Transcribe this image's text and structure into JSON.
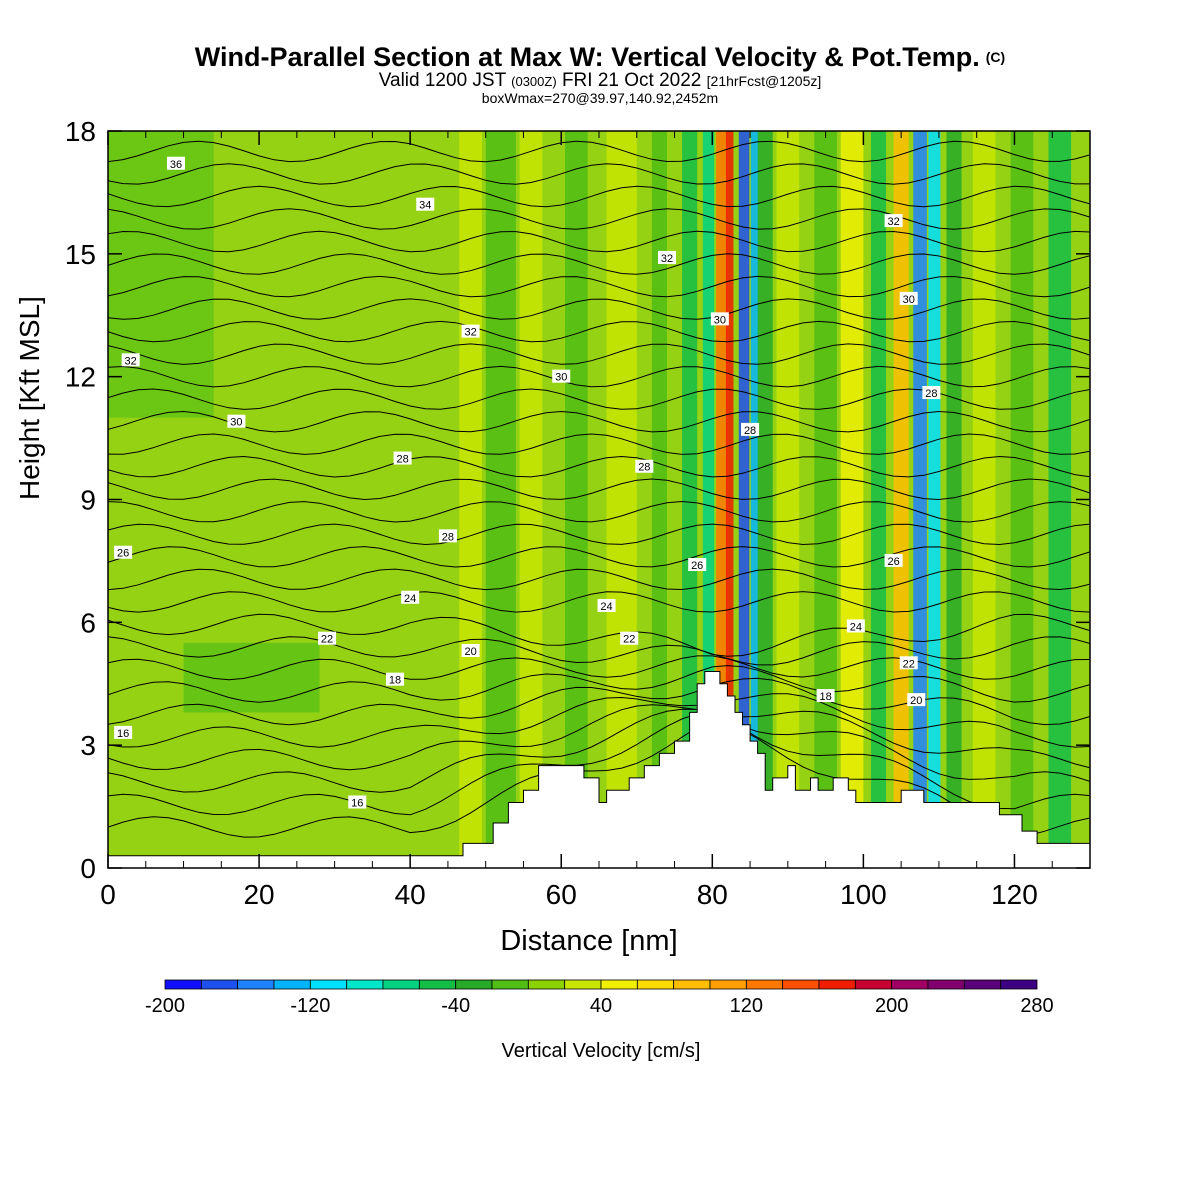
{
  "chart_data": {
    "type": "heatmap",
    "title": "Wind-Parallel Section at Max W: Vertical Velocity & Pot.Temp.",
    "title_mark": "(C)",
    "subtitle": {
      "valid": "Valid 1200 JST",
      "utc": "(0300Z)",
      "date": "FRI 21 Oct 2022",
      "fcst": "[21hrFcst@1205z]"
    },
    "box_info": "boxWmax=270@39.97,140.92,2452m",
    "xlabel": "Distance [nm]",
    "ylabel": "Height [Kft MSL]",
    "xlim": [
      0,
      130
    ],
    "ylim": [
      0,
      18
    ],
    "x_ticks": [
      "0",
      "20",
      "40",
      "60",
      "80",
      "100",
      "120"
    ],
    "y_ticks": [
      "0",
      "3",
      "6",
      "9",
      "12",
      "15",
      "18"
    ],
    "colorbar": {
      "label": "Vertical Velocity [cm/s]",
      "tick_labels": [
        "-200",
        "-120",
        "-40",
        "40",
        "120",
        "200",
        "280"
      ],
      "range": [
        -200,
        280
      ],
      "step": 20,
      "colors": [
        "#1010ff",
        "#1e50f0",
        "#1e82ff",
        "#00b4ff",
        "#00e0ff",
        "#00e6c8",
        "#00d282",
        "#14be46",
        "#28aa28",
        "#50be14",
        "#8cd200",
        "#c8e600",
        "#f0f000",
        "#ffdc00",
        "#ffbe00",
        "#ffa000",
        "#ff7800",
        "#ff5000",
        "#f01e00",
        "#c80032",
        "#a00064",
        "#82006e",
        "#5a0078",
        "#3c0082"
      ]
    },
    "background_color": "#96d214",
    "theta_labels": [
      {
        "value": "36",
        "x": 9,
        "y": 17.2
      },
      {
        "value": "34",
        "x": 42,
        "y": 16.2
      },
      {
        "value": "32",
        "x": 74,
        "y": 14.9
      },
      {
        "value": "32",
        "x": 104,
        "y": 15.8
      },
      {
        "value": "32",
        "x": 48,
        "y": 13.1
      },
      {
        "value": "32",
        "x": 3,
        "y": 12.4
      },
      {
        "value": "30",
        "x": 81,
        "y": 13.4
      },
      {
        "value": "30",
        "x": 106,
        "y": 13.9
      },
      {
        "value": "30",
        "x": 60,
        "y": 12.0
      },
      {
        "value": "30",
        "x": 17,
        "y": 10.9
      },
      {
        "value": "28",
        "x": 85,
        "y": 10.7
      },
      {
        "value": "28",
        "x": 109,
        "y": 11.6
      },
      {
        "value": "28",
        "x": 39,
        "y": 10.0
      },
      {
        "value": "28",
        "x": 71,
        "y": 9.8
      },
      {
        "value": "28",
        "x": 45,
        "y": 8.1
      },
      {
        "value": "26",
        "x": 2,
        "y": 7.7
      },
      {
        "value": "26",
        "x": 78,
        "y": 7.4
      },
      {
        "value": "26",
        "x": 104,
        "y": 7.5
      },
      {
        "value": "24",
        "x": 40,
        "y": 6.6
      },
      {
        "value": "24",
        "x": 66,
        "y": 6.4
      },
      {
        "value": "24",
        "x": 99,
        "y": 5.9
      },
      {
        "value": "22",
        "x": 29,
        "y": 5.6
      },
      {
        "value": "22",
        "x": 69,
        "y": 5.6
      },
      {
        "value": "22",
        "x": 106,
        "y": 5.0
      },
      {
        "value": "20",
        "x": 48,
        "y": 5.3
      },
      {
        "value": "20",
        "x": 107,
        "y": 4.1
      },
      {
        "value": "18",
        "x": 38,
        "y": 4.6
      },
      {
        "value": "18",
        "x": 95,
        "y": 4.2
      },
      {
        "value": "16",
        "x": 2,
        "y": 3.3
      },
      {
        "value": "16",
        "x": 33,
        "y": 1.6
      }
    ],
    "terrain": [
      [
        0,
        0.3
      ],
      [
        47,
        0.3
      ],
      [
        47,
        0.6
      ],
      [
        51,
        0.6
      ],
      [
        51,
        1.1
      ],
      [
        53,
        1.1
      ],
      [
        53,
        1.6
      ],
      [
        55,
        1.6
      ],
      [
        55,
        1.9
      ],
      [
        57,
        1.9
      ],
      [
        57,
        2.5
      ],
      [
        63,
        2.5
      ],
      [
        63,
        2.2
      ],
      [
        65,
        2.2
      ],
      [
        65,
        1.6
      ],
      [
        66,
        1.6
      ],
      [
        66,
        1.9
      ],
      [
        69,
        1.9
      ],
      [
        69,
        2.2
      ],
      [
        71,
        2.2
      ],
      [
        71,
        2.5
      ],
      [
        73,
        2.5
      ],
      [
        73,
        2.8
      ],
      [
        75,
        2.8
      ],
      [
        75,
        3.1
      ],
      [
        77,
        3.1
      ],
      [
        77,
        3.8
      ],
      [
        78,
        3.8
      ],
      [
        78,
        4.5
      ],
      [
        79,
        4.5
      ],
      [
        79,
        4.8
      ],
      [
        81,
        4.8
      ],
      [
        81,
        4.5
      ],
      [
        82,
        4.5
      ],
      [
        82,
        4.2
      ],
      [
        83,
        4.2
      ],
      [
        83,
        3.8
      ],
      [
        84,
        3.8
      ],
      [
        84,
        3.5
      ],
      [
        85,
        3.5
      ],
      [
        85,
        3.1
      ],
      [
        86,
        3.1
      ],
      [
        86,
        2.8
      ],
      [
        87,
        2.8
      ],
      [
        87,
        1.9
      ],
      [
        88,
        1.9
      ],
      [
        88,
        2.2
      ],
      [
        90,
        2.2
      ],
      [
        90,
        2.5
      ],
      [
        91,
        2.5
      ],
      [
        91,
        1.9
      ],
      [
        93,
        1.9
      ],
      [
        93,
        2.2
      ],
      [
        94,
        2.2
      ],
      [
        94,
        1.9
      ],
      [
        96,
        1.9
      ],
      [
        96,
        2.2
      ],
      [
        98,
        2.2
      ],
      [
        98,
        1.9
      ],
      [
        99,
        1.9
      ],
      [
        99,
        1.6
      ],
      [
        105,
        1.6
      ],
      [
        105,
        1.9
      ],
      [
        108,
        1.9
      ],
      [
        108,
        1.6
      ],
      [
        118,
        1.6
      ],
      [
        118,
        1.3
      ],
      [
        121,
        1.3
      ],
      [
        121,
        0.9
      ],
      [
        123,
        0.9
      ],
      [
        123,
        0.6
      ],
      [
        130,
        0.6
      ],
      [
        130,
        0
      ]
    ]
  }
}
